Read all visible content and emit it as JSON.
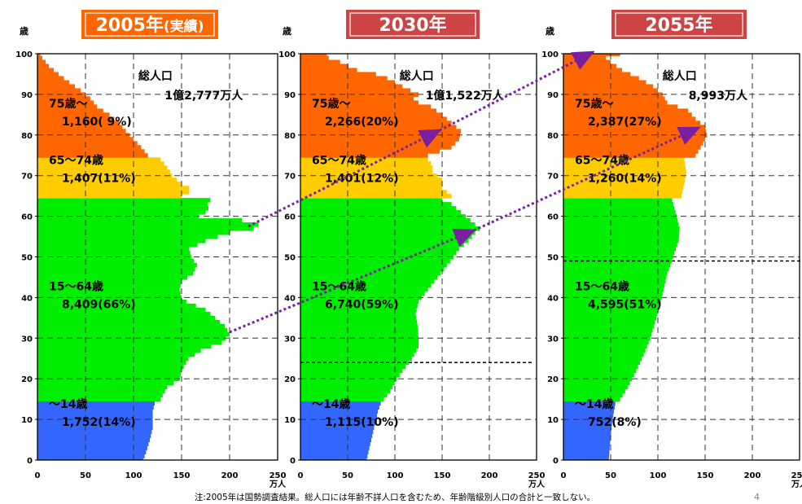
{
  "chart_data": {
    "type": "area",
    "ylabel": "歳",
    "xlabel": "万人",
    "xlim": [
      0,
      250
    ],
    "ylim": [
      0,
      100
    ],
    "x_ticks": [
      0,
      50,
      100,
      150,
      200,
      250
    ],
    "y_ticks": [
      0,
      10,
      20,
      30,
      40,
      50,
      60,
      70,
      80,
      90,
      100
    ],
    "age_groups": [
      {
        "name": "75歳～",
        "min": 75,
        "max": 100,
        "color": "#ff6600"
      },
      {
        "name": "65～74歳",
        "min": 65,
        "max": 74,
        "color": "#ffcc00"
      },
      {
        "name": "15～64歳",
        "min": 15,
        "max": 64,
        "color": "#00ee00"
      },
      {
        "name": "～14歳",
        "min": 0,
        "max": 14,
        "color": "#3366ff"
      }
    ],
    "panels": [
      {
        "title": "2005年",
        "title_suffix": "(実績)",
        "total_label": "総人口",
        "total_value": "1億2,777万人",
        "group_labels": [
          {
            "name": "75歳～",
            "value": "1,160( 9%)"
          },
          {
            "name": "65～74歳",
            "value": "1,407(11%)"
          },
          {
            "name": "15～64歳",
            "value": "8,409(66%)"
          },
          {
            "name": "～14歳",
            "value": "1,752(14%)"
          }
        ],
        "age_population": [
          [
            0,
            110
          ],
          [
            2,
            113
          ],
          [
            5,
            117
          ],
          [
            8,
            120
          ],
          [
            10,
            120
          ],
          [
            12,
            120
          ],
          [
            14,
            122
          ],
          [
            15,
            128
          ],
          [
            18,
            135
          ],
          [
            20,
            148
          ],
          [
            22,
            150
          ],
          [
            25,
            157
          ],
          [
            27,
            170
          ],
          [
            29,
            192
          ],
          [
            31,
            200
          ],
          [
            33,
            195
          ],
          [
            35,
            185
          ],
          [
            37,
            175
          ],
          [
            39,
            155
          ],
          [
            40,
            150
          ],
          [
            42,
            148
          ],
          [
            44,
            150
          ],
          [
            46,
            162
          ],
          [
            48,
            166
          ],
          [
            50,
            160
          ],
          [
            52,
            158
          ],
          [
            54,
            175
          ],
          [
            56,
            200
          ],
          [
            57,
            225
          ],
          [
            58,
            230
          ],
          [
            59,
            213
          ],
          [
            60,
            168
          ],
          [
            61,
            175
          ],
          [
            62,
            178
          ],
          [
            63,
            177
          ],
          [
            64,
            180
          ],
          [
            65,
            150
          ],
          [
            66,
            158
          ],
          [
            67,
            158
          ],
          [
            68,
            150
          ],
          [
            69,
            145
          ],
          [
            70,
            140
          ],
          [
            71,
            138
          ],
          [
            72,
            135
          ],
          [
            73,
            132
          ],
          [
            74,
            128
          ],
          [
            75,
            115
          ],
          [
            77,
            108
          ],
          [
            79,
            100
          ],
          [
            81,
            92
          ],
          [
            83,
            85
          ],
          [
            85,
            75
          ],
          [
            87,
            62
          ],
          [
            89,
            55
          ],
          [
            91,
            45
          ],
          [
            93,
            33
          ],
          [
            95,
            22
          ],
          [
            97,
            12
          ],
          [
            99,
            5
          ],
          [
            100,
            3
          ]
        ],
        "arrow_ages": [],
        "dashed_line_age": null
      },
      {
        "title": "2030年",
        "title_suffix": "",
        "total_label": "総人口",
        "total_value": "1億1,522万人",
        "group_labels": [
          {
            "name": "75歳～",
            "value": "2,266(20%)"
          },
          {
            "name": "65～74歳",
            "value": "1,401(12%)"
          },
          {
            "name": "15～64歳",
            "value": "6,740(59%)"
          },
          {
            "name": "～14歳",
            "value": "1,115(10%)"
          }
        ],
        "age_population": [
          [
            0,
            70
          ],
          [
            2,
            72
          ],
          [
            5,
            75
          ],
          [
            8,
            78
          ],
          [
            10,
            80
          ],
          [
            12,
            82
          ],
          [
            14,
            85
          ],
          [
            15,
            88
          ],
          [
            17,
            95
          ],
          [
            20,
            102
          ],
          [
            22,
            108
          ],
          [
            25,
            118
          ],
          [
            28,
            125
          ],
          [
            30,
            125
          ],
          [
            33,
            124
          ],
          [
            36,
            122
          ],
          [
            39,
            125
          ],
          [
            42,
            135
          ],
          [
            45,
            145
          ],
          [
            48,
            155
          ],
          [
            50,
            162
          ],
          [
            52,
            168
          ],
          [
            54,
            178
          ],
          [
            56,
            185
          ],
          [
            57,
            190
          ],
          [
            58,
            185
          ],
          [
            59,
            180
          ],
          [
            60,
            175
          ],
          [
            61,
            170
          ],
          [
            62,
            165
          ],
          [
            63,
            160
          ],
          [
            64,
            150
          ],
          [
            65,
            160
          ],
          [
            66,
            155
          ],
          [
            67,
            150
          ],
          [
            68,
            150
          ],
          [
            69,
            150
          ],
          [
            70,
            145
          ],
          [
            71,
            140
          ],
          [
            72,
            140
          ],
          [
            73,
            138
          ],
          [
            74,
            135
          ],
          [
            75,
            135
          ],
          [
            77,
            160
          ],
          [
            79,
            168
          ],
          [
            81,
            170
          ],
          [
            83,
            160
          ],
          [
            85,
            150
          ],
          [
            87,
            138
          ],
          [
            88,
            125
          ],
          [
            89,
            120
          ],
          [
            90,
            125
          ],
          [
            92,
            108
          ],
          [
            94,
            92
          ],
          [
            95,
            80
          ],
          [
            96,
            60
          ],
          [
            98,
            42
          ],
          [
            99,
            30
          ],
          [
            100,
            28
          ]
        ],
        "arrow_ages": [],
        "dashed_line_age": 24
      },
      {
        "title": "2055年",
        "title_suffix": "",
        "total_label": "総人口",
        "total_value": "8,993万人",
        "group_labels": [
          {
            "name": "75歳～",
            "value": "2,387(27%)"
          },
          {
            "name": "65～74歳",
            "value": "1,260(14%)"
          },
          {
            "name": "15～64歳",
            "value": "4,595(51%)"
          },
          {
            "name": "～14歳",
            "value": "752(8%)"
          }
        ],
        "age_population": [
          [
            0,
            48
          ],
          [
            3,
            49
          ],
          [
            6,
            50
          ],
          [
            10,
            52
          ],
          [
            14,
            55
          ],
          [
            15,
            60
          ],
          [
            18,
            68
          ],
          [
            22,
            77
          ],
          [
            26,
            85
          ],
          [
            30,
            92
          ],
          [
            34,
            97
          ],
          [
            38,
            102
          ],
          [
            42,
            106
          ],
          [
            46,
            110
          ],
          [
            50,
            116
          ],
          [
            54,
            122
          ],
          [
            57,
            123
          ],
          [
            60,
            120
          ],
          [
            64,
            115
          ],
          [
            65,
            125
          ],
          [
            68,
            128
          ],
          [
            71,
            130
          ],
          [
            74,
            128
          ],
          [
            75,
            140
          ],
          [
            78,
            148
          ],
          [
            80,
            152
          ],
          [
            82,
            150
          ],
          [
            84,
            140
          ],
          [
            86,
            132
          ],
          [
            88,
            110
          ],
          [
            90,
            105
          ],
          [
            92,
            95
          ],
          [
            94,
            80
          ],
          [
            96,
            62
          ],
          [
            98,
            50
          ],
          [
            99,
            45
          ],
          [
            100,
            60
          ]
        ],
        "arrow_ages": [],
        "dashed_line_age": 49
      }
    ],
    "footnote": "注:2005年は国勢調査結果。総人口には年齢不詳人口を含むため、年齢階級別人口の合計と一致しない。",
    "page_number": "4"
  }
}
